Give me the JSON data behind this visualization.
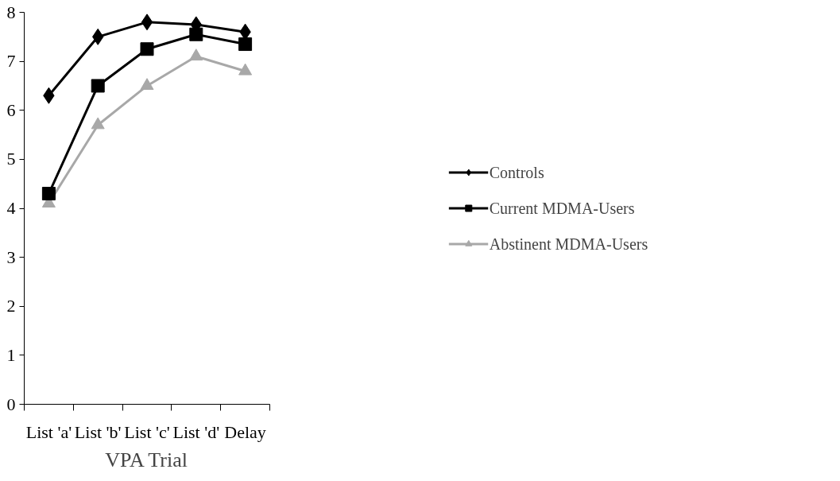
{
  "chart_data": {
    "type": "line",
    "xlabel": "VPA Trial",
    "categories": [
      "List 'a'",
      "List 'b'",
      "List 'c'",
      "List 'd'",
      "Delay"
    ],
    "series": [
      {
        "name": "Controls",
        "color": "#000000",
        "marker": "diamond",
        "values": [
          6.3,
          7.5,
          7.8,
          7.75,
          7.6
        ]
      },
      {
        "name": "Current MDMA-Users",
        "color": "#000000",
        "marker": "square",
        "values": [
          4.3,
          6.5,
          7.25,
          7.55,
          7.35
        ]
      },
      {
        "name": "Abstinent MDMA-Users",
        "color": "#a8a8a8",
        "marker": "triangle",
        "values": [
          4.1,
          5.7,
          6.5,
          7.1,
          6.8
        ]
      }
    ],
    "ylim": [
      0,
      8
    ],
    "yticks": [
      0,
      1,
      2,
      3,
      4,
      5,
      6,
      7,
      8
    ],
    "grid": false,
    "legend": "right",
    "line_style": "solid"
  }
}
